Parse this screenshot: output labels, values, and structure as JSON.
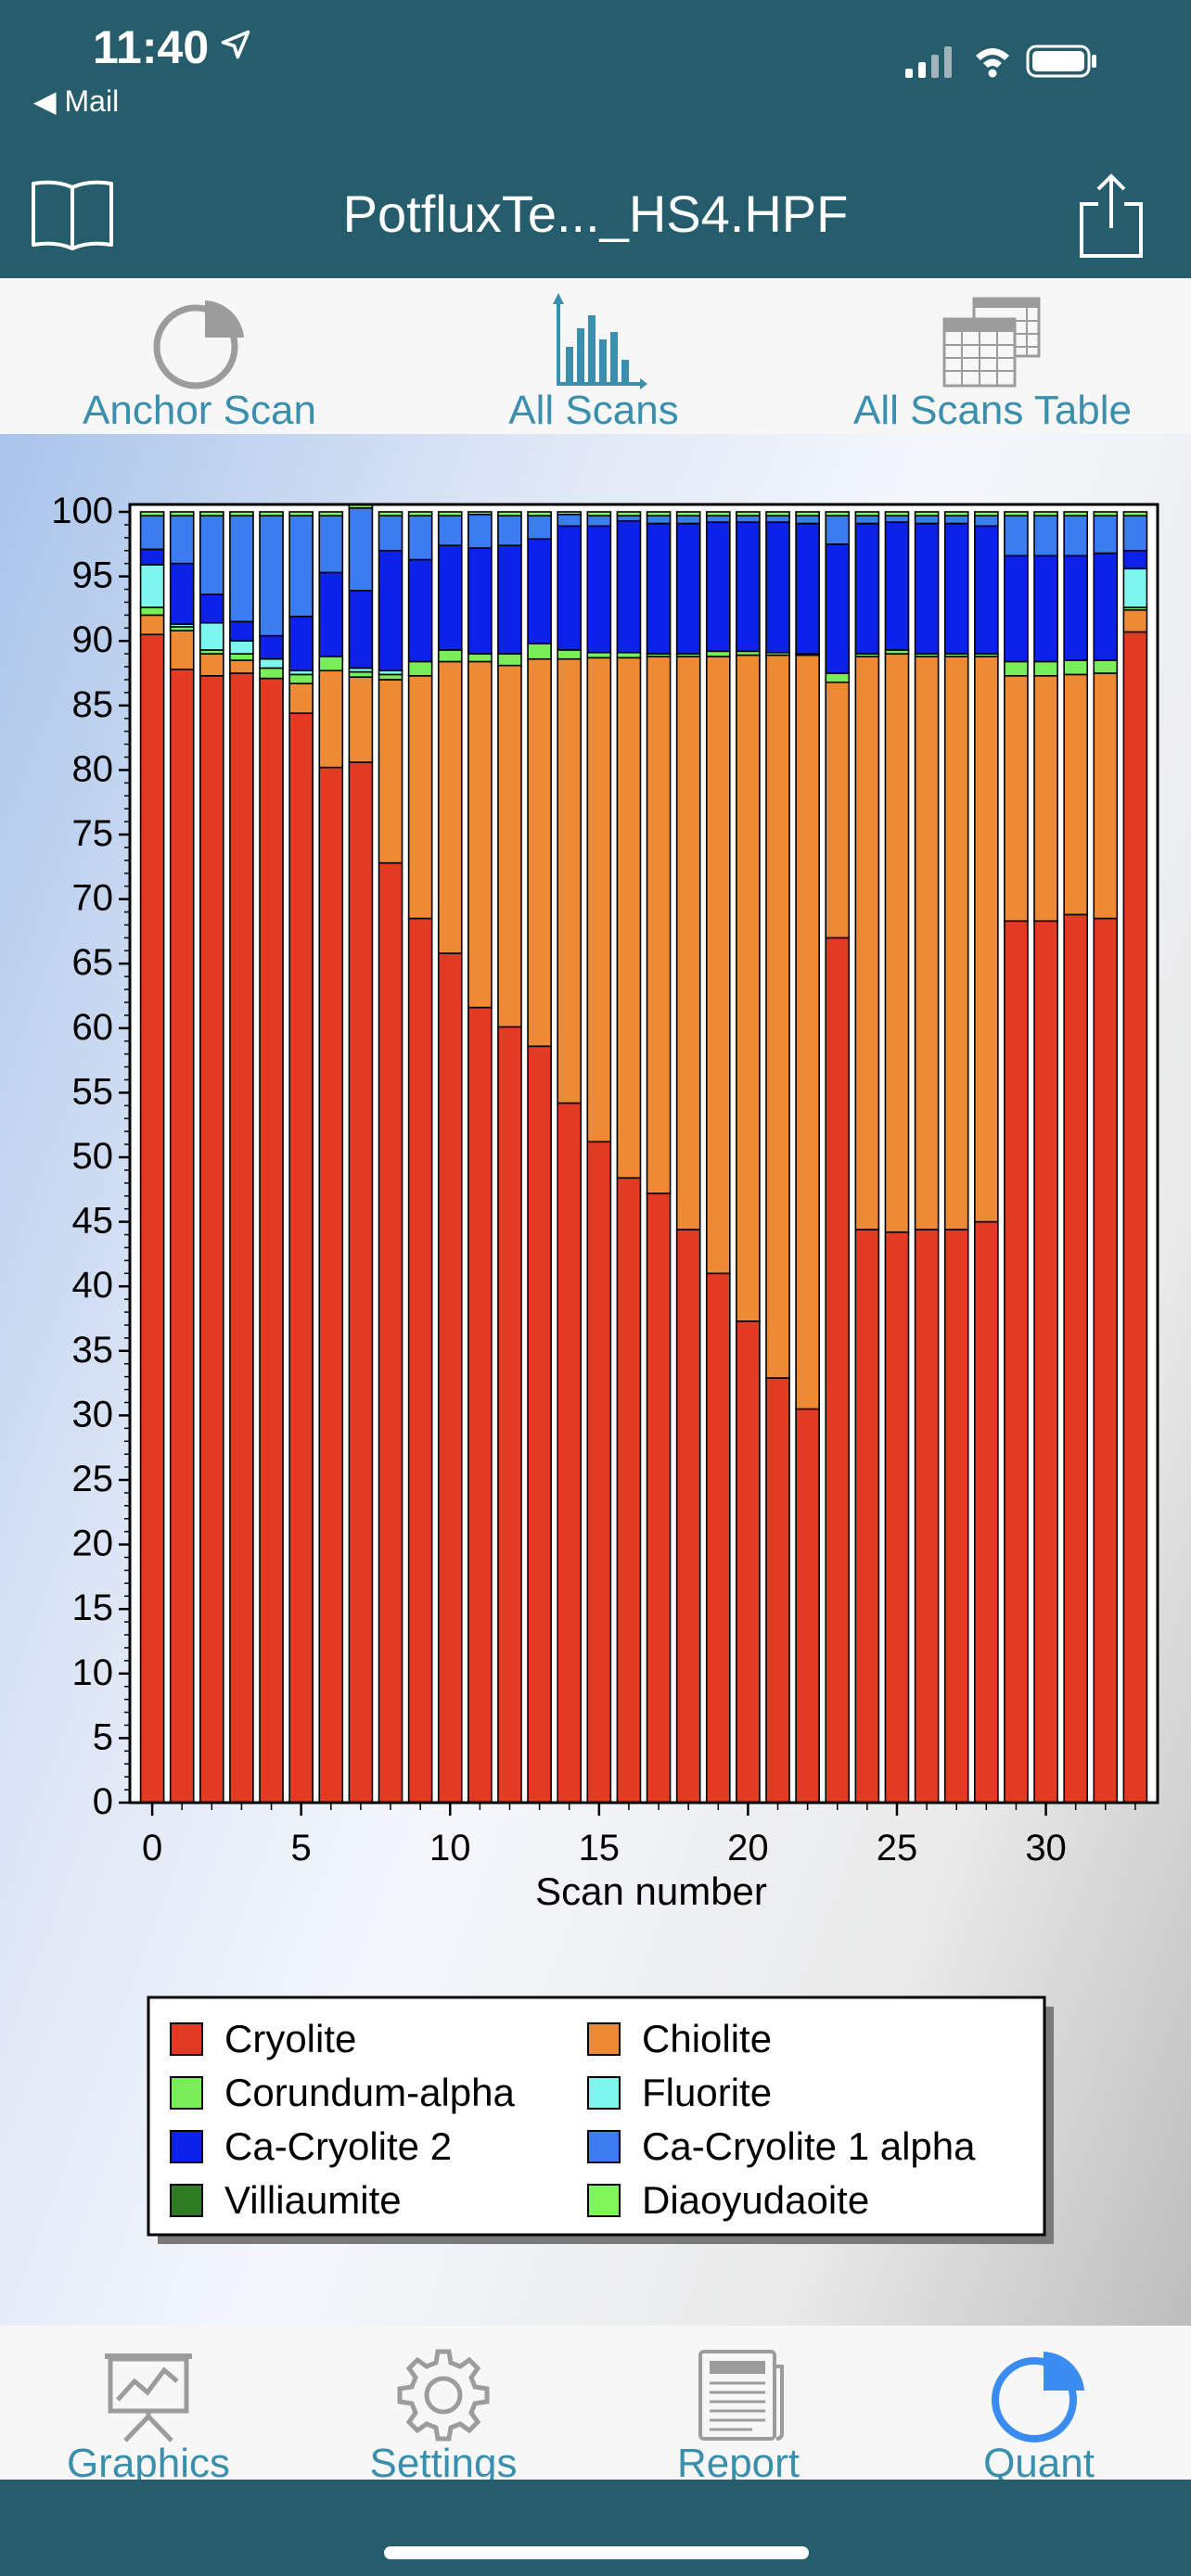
{
  "status_bar": {
    "time": "11:40",
    "back_app": "◀ Mail"
  },
  "nav": {
    "title": "PotfluxTe..._HS4.HPF"
  },
  "top_tabs": [
    {
      "label": "Anchor Scan",
      "icon": "pie-chart-icon"
    },
    {
      "label": "All Scans",
      "icon": "bar-chart-icon",
      "selected": true
    },
    {
      "label": "All Scans Table",
      "icon": "table-icon"
    }
  ],
  "bottom_tabs": [
    {
      "label": "Graphics",
      "icon": "presentation-chart-icon"
    },
    {
      "label": "Settings",
      "icon": "gear-icon"
    },
    {
      "label": "Report",
      "icon": "newspaper-icon"
    },
    {
      "label": "Quant",
      "icon": "pie-chart-icon",
      "selected": true
    }
  ],
  "chart_data": {
    "type": "bar",
    "stacked": true,
    "xlabel": "Scan number",
    "ylabel": "",
    "ylim": [
      0,
      100
    ],
    "xlim": [
      -0.75,
      33.75
    ],
    "y_ticks": [
      0,
      5,
      10,
      15,
      20,
      25,
      30,
      35,
      40,
      45,
      50,
      55,
      60,
      65,
      70,
      75,
      80,
      85,
      90,
      95,
      100
    ],
    "x_ticks": [
      0,
      5,
      10,
      15,
      20,
      25,
      30
    ],
    "legend_position": "bottom",
    "x": [
      0,
      1,
      2,
      3,
      4,
      5,
      6,
      7,
      8,
      9,
      10,
      11,
      12,
      13,
      14,
      15,
      16,
      17,
      18,
      19,
      20,
      21,
      22,
      23,
      24,
      25,
      26,
      27,
      28,
      29,
      30,
      31,
      32,
      33
    ],
    "series": [
      {
        "name": "Cryolite",
        "color": "#e23a23",
        "values": [
          90.5,
          87.8,
          87.3,
          87.5,
          87.1,
          84.4,
          80.2,
          80.6,
          72.8,
          68.5,
          65.8,
          61.6,
          60.1,
          58.6,
          54.2,
          51.2,
          48.4,
          47.2,
          44.4,
          41.0,
          37.3,
          32.9,
          30.5,
          67.0,
          44.4,
          44.2,
          44.4,
          44.4,
          45.0,
          68.3,
          68.3,
          68.8,
          68.5,
          90.7
        ]
      },
      {
        "name": "Chiolite",
        "color": "#ee8a33",
        "values": [
          1.5,
          3.0,
          1.7,
          1.0,
          0,
          2.3,
          7.5,
          6.6,
          14.2,
          18.8,
          22.6,
          26.8,
          28.0,
          30.0,
          34.4,
          37.5,
          40.3,
          41.6,
          44.4,
          47.8,
          51.6,
          56.0,
          58.4,
          19.8,
          44.4,
          44.8,
          44.4,
          44.4,
          43.8,
          19.0,
          19.0,
          18.6,
          19.0,
          1.7
        ]
      },
      {
        "name": "Corundum-alpha",
        "color": "#78ef58",
        "values": [
          0.6,
          0.3,
          0.3,
          0.5,
          0.8,
          0.7,
          1.1,
          0.4,
          0.4,
          1.1,
          0.9,
          0.6,
          0.9,
          1.2,
          0.7,
          0.4,
          0.4,
          0.2,
          0.2,
          0.4,
          0.3,
          0.2,
          0.1,
          0.7,
          0.2,
          0.3,
          0.2,
          0.2,
          0.2,
          1.1,
          1.1,
          1.1,
          1.0,
          0.2
        ]
      },
      {
        "name": "Fluorite",
        "color": "#7ef6f0",
        "values": [
          3.3,
          0.2,
          2.1,
          1.0,
          0.7,
          0.3,
          0,
          0.3,
          0.3,
          0,
          0,
          0,
          0,
          0,
          0,
          0,
          0,
          0,
          0,
          0,
          0,
          0,
          0,
          0,
          0,
          0,
          0,
          0,
          0,
          0,
          0,
          0,
          0,
          3.0
        ]
      },
      {
        "name": "Ca-Cryolite 2",
        "color": "#0d22e8",
        "values": [
          1.2,
          4.7,
          2.2,
          1.5,
          1.8,
          4.2,
          6.5,
          6.0,
          9.3,
          7.9,
          8.1,
          8.2,
          8.4,
          8.1,
          9.6,
          9.8,
          10.2,
          10.1,
          10.1,
          10.0,
          10.0,
          10.1,
          10.1,
          10.0,
          10.1,
          9.9,
          10.1,
          10.1,
          9.9,
          8.2,
          8.2,
          8.1,
          8.3,
          1.4
        ]
      },
      {
        "name": "Ca-Cryolite 1 alpha",
        "color": "#3b7df1",
        "values": [
          2.6,
          3.7,
          6.1,
          8.2,
          9.3,
          7.8,
          4.4,
          6.4,
          2.7,
          3.4,
          2.3,
          2.6,
          2.3,
          1.8,
          0.9,
          0.8,
          0.4,
          0.6,
          0.6,
          0.5,
          0.5,
          0.5,
          0.6,
          2.2,
          0.6,
          0.5,
          0.6,
          0.6,
          0.8,
          3.1,
          3.1,
          3.1,
          2.9,
          2.7
        ]
      },
      {
        "name": "Villiaumite",
        "color": "#2e7a22",
        "values": [
          0,
          0,
          0,
          0,
          0,
          0,
          0,
          0,
          0,
          0,
          0,
          0,
          0,
          0,
          0,
          0,
          0,
          0,
          0,
          0,
          0,
          0,
          0,
          0,
          0,
          0,
          0,
          0,
          0,
          0,
          0,
          0,
          0,
          0
        ]
      },
      {
        "name": "Diaoyudaoite",
        "color": "#7ef65a",
        "values": [
          0.3,
          0.3,
          0.3,
          0.3,
          0.3,
          0.3,
          0.3,
          0.3,
          0.3,
          0.3,
          0.3,
          0.2,
          0.3,
          0.3,
          0.2,
          0.3,
          0.3,
          0.3,
          0.3,
          0.3,
          0.3,
          0.3,
          0.3,
          0.3,
          0.3,
          0.3,
          0.3,
          0.3,
          0.3,
          0.3,
          0.3,
          0.3,
          0.3,
          0.3
        ]
      }
    ]
  }
}
